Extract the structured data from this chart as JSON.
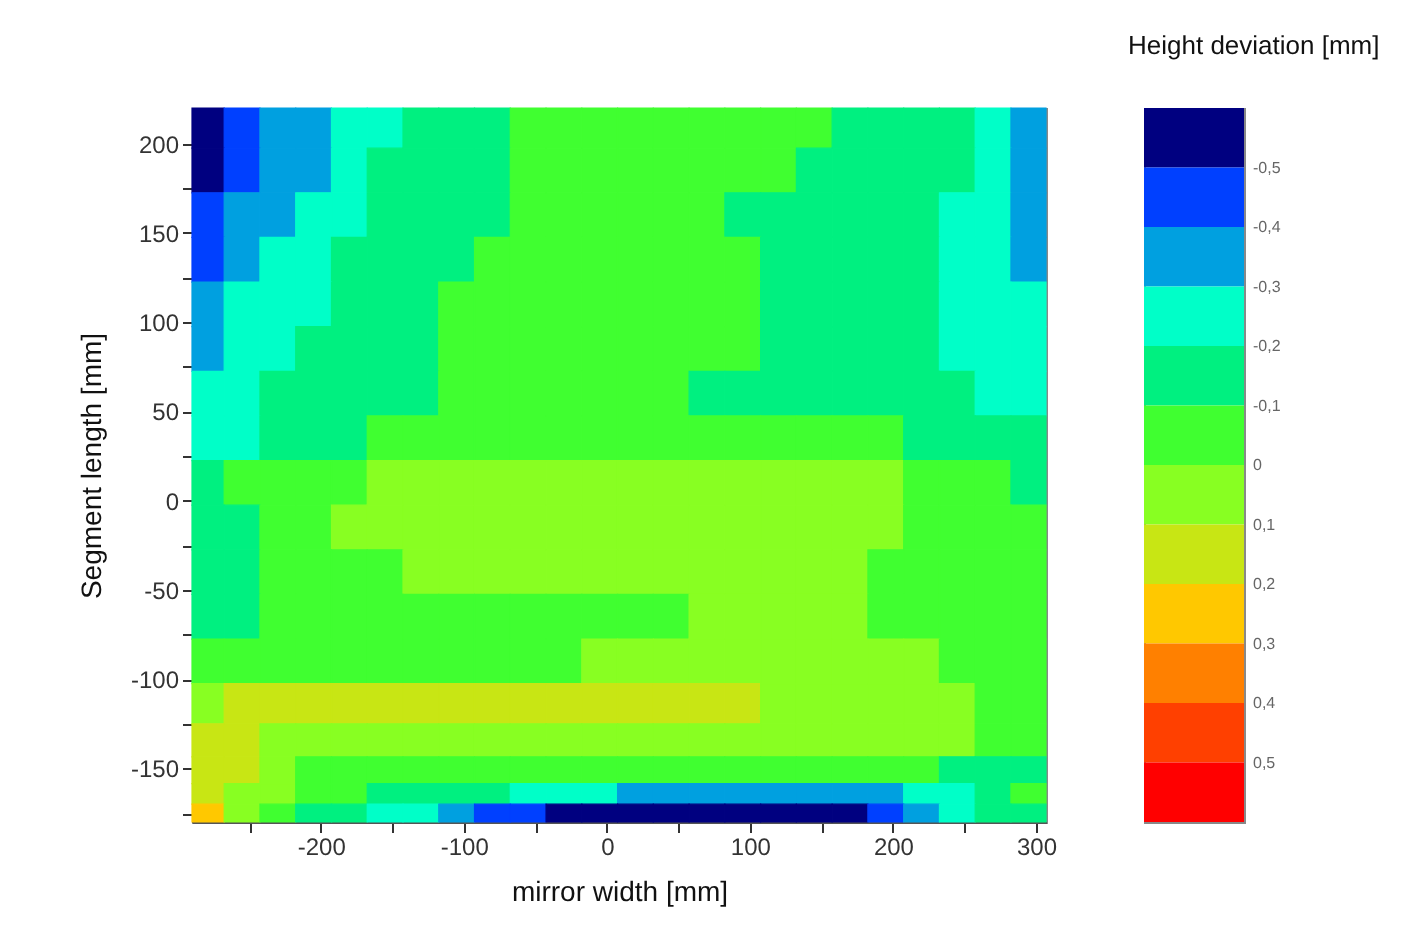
{
  "chart_data": {
    "type": "heatmap",
    "xlabel": "mirror width [mm]",
    "ylabel": "Segment length [mm]",
    "clabel": "Height deviation [mm]",
    "x": [
      -280,
      -255,
      -230,
      -205,
      -180,
      -155,
      -130,
      -105,
      -80,
      -55,
      -30,
      -5,
      20,
      45,
      70,
      95,
      120,
      145,
      170,
      195,
      220,
      245,
      270,
      295
    ],
    "y": [
      210,
      185,
      160,
      135,
      110,
      85,
      60,
      35,
      10,
      -15,
      -40,
      -65,
      -90,
      -115,
      -135,
      -152,
      -165,
      -175
    ],
    "cells": [
      [
        -0.55,
        -0.45,
        -0.35,
        -0.35,
        -0.25,
        -0.25,
        -0.15,
        -0.15,
        -0.15,
        -0.05,
        -0.05,
        -0.05,
        -0.05,
        -0.05,
        -0.05,
        -0.05,
        -0.05,
        -0.05,
        -0.15,
        -0.15,
        -0.15,
        -0.15,
        -0.25,
        -0.35
      ],
      [
        -0.55,
        -0.45,
        -0.35,
        -0.35,
        -0.25,
        -0.15,
        -0.15,
        -0.15,
        -0.15,
        -0.05,
        -0.05,
        -0.05,
        -0.05,
        -0.05,
        -0.05,
        -0.05,
        -0.05,
        -0.15,
        -0.15,
        -0.15,
        -0.15,
        -0.15,
        -0.25,
        -0.35
      ],
      [
        -0.45,
        -0.35,
        -0.35,
        -0.25,
        -0.25,
        -0.15,
        -0.15,
        -0.15,
        -0.15,
        -0.05,
        -0.05,
        -0.05,
        -0.05,
        -0.05,
        -0.05,
        -0.15,
        -0.15,
        -0.15,
        -0.15,
        -0.15,
        -0.15,
        -0.25,
        -0.25,
        -0.35
      ],
      [
        -0.45,
        -0.35,
        -0.25,
        -0.25,
        -0.15,
        -0.15,
        -0.15,
        -0.15,
        -0.05,
        -0.05,
        -0.05,
        -0.05,
        -0.05,
        -0.05,
        -0.05,
        -0.05,
        -0.15,
        -0.15,
        -0.15,
        -0.15,
        -0.15,
        -0.25,
        -0.25,
        -0.35
      ],
      [
        -0.35,
        -0.25,
        -0.25,
        -0.25,
        -0.15,
        -0.15,
        -0.15,
        -0.05,
        -0.05,
        -0.05,
        -0.05,
        -0.05,
        -0.05,
        -0.05,
        -0.05,
        -0.05,
        -0.15,
        -0.15,
        -0.15,
        -0.15,
        -0.15,
        -0.25,
        -0.25,
        -0.25
      ],
      [
        -0.35,
        -0.25,
        -0.25,
        -0.15,
        -0.15,
        -0.15,
        -0.15,
        -0.05,
        -0.05,
        -0.05,
        -0.05,
        -0.05,
        -0.05,
        -0.05,
        -0.05,
        -0.05,
        -0.15,
        -0.15,
        -0.15,
        -0.15,
        -0.15,
        -0.25,
        -0.25,
        -0.25
      ],
      [
        -0.25,
        -0.25,
        -0.15,
        -0.15,
        -0.15,
        -0.15,
        -0.15,
        -0.05,
        -0.05,
        -0.05,
        -0.05,
        -0.05,
        -0.05,
        -0.05,
        -0.15,
        -0.15,
        -0.15,
        -0.15,
        -0.15,
        -0.15,
        -0.15,
        -0.15,
        -0.25,
        -0.25
      ],
      [
        -0.25,
        -0.25,
        -0.15,
        -0.15,
        -0.15,
        -0.05,
        -0.05,
        -0.05,
        -0.05,
        -0.05,
        -0.05,
        -0.05,
        -0.05,
        -0.05,
        -0.05,
        -0.05,
        -0.05,
        -0.05,
        -0.05,
        -0.05,
        -0.15,
        -0.15,
        -0.15,
        -0.15
      ],
      [
        -0.15,
        -0.05,
        -0.05,
        -0.05,
        -0.05,
        0.05,
        0.05,
        0.05,
        0.05,
        0.05,
        0.05,
        0.05,
        0.05,
        0.05,
        0.05,
        0.05,
        0.05,
        0.05,
        0.05,
        0.05,
        -0.05,
        -0.05,
        -0.05,
        -0.15
      ],
      [
        -0.15,
        -0.15,
        -0.05,
        -0.05,
        0.05,
        0.05,
        0.05,
        0.05,
        0.05,
        0.05,
        0.05,
        0.05,
        0.05,
        0.05,
        0.05,
        0.05,
        0.05,
        0.05,
        0.05,
        0.05,
        -0.05,
        -0.05,
        -0.05,
        -0.05
      ],
      [
        -0.15,
        -0.15,
        -0.05,
        -0.05,
        -0.05,
        -0.05,
        0.05,
        0.05,
        0.05,
        0.05,
        0.05,
        0.05,
        0.05,
        0.05,
        0.05,
        0.05,
        0.05,
        0.05,
        0.05,
        -0.05,
        -0.05,
        -0.05,
        -0.05,
        -0.05
      ],
      [
        -0.15,
        -0.15,
        -0.05,
        -0.05,
        -0.05,
        -0.05,
        -0.05,
        -0.05,
        -0.05,
        -0.05,
        -0.05,
        -0.05,
        -0.05,
        -0.05,
        0.05,
        0.05,
        0.05,
        0.05,
        0.05,
        -0.05,
        -0.05,
        -0.05,
        -0.05,
        -0.05
      ],
      [
        -0.05,
        -0.05,
        -0.05,
        -0.05,
        -0.05,
        -0.05,
        -0.05,
        -0.05,
        -0.05,
        -0.05,
        -0.05,
        0.05,
        0.05,
        0.05,
        0.05,
        0.05,
        0.05,
        0.05,
        0.05,
        0.05,
        0.05,
        -0.05,
        -0.05,
        -0.05
      ],
      [
        0.05,
        0.15,
        0.15,
        0.15,
        0.15,
        0.15,
        0.15,
        0.15,
        0.15,
        0.15,
        0.15,
        0.15,
        0.15,
        0.15,
        0.15,
        0.15,
        0.05,
        0.05,
        0.05,
        0.05,
        0.05,
        0.05,
        -0.05,
        -0.05
      ],
      [
        0.15,
        0.15,
        0.05,
        0.05,
        0.05,
        0.05,
        0.05,
        0.05,
        0.05,
        0.05,
        0.05,
        0.05,
        0.05,
        0.05,
        0.05,
        0.05,
        0.05,
        0.05,
        0.05,
        0.05,
        0.05,
        0.05,
        -0.05,
        -0.05
      ],
      [
        0.15,
        0.15,
        0.05,
        -0.05,
        -0.05,
        -0.05,
        -0.05,
        -0.05,
        -0.05,
        -0.05,
        -0.05,
        -0.05,
        -0.05,
        -0.05,
        -0.05,
        -0.05,
        -0.05,
        -0.05,
        -0.05,
        -0.05,
        -0.05,
        -0.15,
        -0.15,
        -0.15
      ],
      [
        0.15,
        0.05,
        0.05,
        -0.05,
        -0.05,
        -0.15,
        -0.15,
        -0.15,
        -0.15,
        -0.25,
        -0.25,
        -0.25,
        -0.35,
        -0.35,
        -0.35,
        -0.35,
        -0.35,
        -0.35,
        -0.35,
        -0.35,
        -0.25,
        -0.25,
        -0.15,
        -0.05
      ],
      [
        0.25,
        0.05,
        -0.05,
        -0.15,
        -0.15,
        -0.25,
        -0.25,
        -0.35,
        -0.45,
        -0.45,
        -0.55,
        -0.55,
        -0.55,
        -0.55,
        -0.55,
        -0.55,
        -0.55,
        -0.55,
        -0.55,
        -0.45,
        -0.35,
        -0.25,
        -0.15,
        -0.15
      ]
    ],
    "xlim": [
      -290,
      307
    ],
    "xticks": [
      {
        "value": -250,
        "label": null
      },
      -200,
      {
        "value": -150,
        "label": null
      },
      -100,
      {
        "value": -50,
        "label": null
      },
      0,
      {
        "value": 50,
        "label": null
      },
      100,
      {
        "value": 150,
        "label": null
      },
      200,
      {
        "value": 250,
        "label": null
      },
      300
    ],
    "ylim": [
      -180,
      220
    ],
    "yticks": [
      {
        "value": -175,
        "label": null
      },
      -150,
      {
        "value": -125,
        "label": null
      },
      -100,
      {
        "value": -75,
        "label": null
      },
      -50,
      {
        "value": -25,
        "label": null
      },
      0,
      {
        "value": 25,
        "label": null
      },
      50,
      {
        "value": 75,
        "label": null
      },
      100,
      {
        "value": 125,
        "label": null
      },
      150,
      {
        "value": 175,
        "label": null
      },
      200
    ],
    "clim": [
      -0.6,
      0.6
    ],
    "cticks": [
      {
        "value": -0.5,
        "label": "-0,5"
      },
      {
        "value": -0.4,
        "label": "-0,4"
      },
      {
        "value": -0.3,
        "label": "-0,3"
      },
      {
        "value": -0.2,
        "label": "-0,2"
      },
      {
        "value": -0.1,
        "label": "-0,1"
      },
      0,
      {
        "value": 0.1,
        "label": "0,1"
      },
      {
        "value": 0.2,
        "label": "0,2"
      },
      {
        "value": 0.3,
        "label": "0,3"
      },
      {
        "value": 0.4,
        "label": "0,4"
      },
      {
        "value": 0.5,
        "label": "0,5"
      }
    ],
    "colors": [
      "#000080",
      "#0040ff",
      "#00a0e0",
      "#00ffc8",
      "#00f080",
      "#40ff30",
      "#88ff22",
      "#c8e614",
      "#ffc800",
      "#ff8000",
      "#ff4000",
      "#ff0000"
    ]
  }
}
